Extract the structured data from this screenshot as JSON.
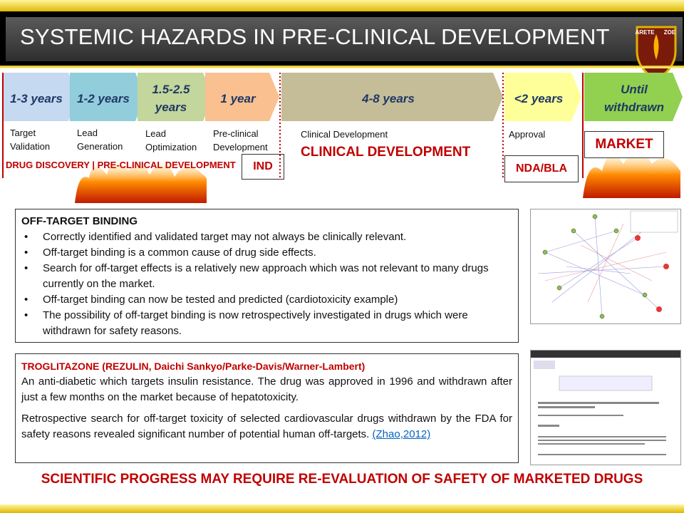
{
  "header": {
    "title": "SYSTEMIC HAZARDS IN PRE-CLINICAL DEVELOPMENT",
    "logo": [
      "ARETE",
      "ZOE"
    ]
  },
  "timeline": {
    "stages": [
      {
        "duration": "1-3 years",
        "label": "Target Validation"
      },
      {
        "duration": "1-2 years",
        "label": "Lead Generation"
      },
      {
        "duration": "1.5-2.5 years",
        "label": "Lead Optimization"
      },
      {
        "duration": "1 year",
        "label": "Pre-clinical Development"
      },
      {
        "duration": "4-8 years",
        "label": "Clinical Development"
      },
      {
        "duration": "<2 years",
        "label": "Approval"
      },
      {
        "duration": "Until withdrawn"
      }
    ],
    "phases": {
      "discovery": "DRUG DISCOVERY | PRE-CLINICAL DEVELOPMENT",
      "ind": "IND",
      "clinical": "CLINICAL DEVELOPMENT",
      "nda": "NDA/BLA",
      "market": "MARKET"
    }
  },
  "off_target": {
    "title": "OFF-TARGET BINDING",
    "bullets": [
      "Correctly identified and validated target may not always be clinically relevant.",
      "Off-target binding is a common cause of drug side effects.",
      "Search for off-target effects is a relatively new approach which was not relevant to many drugs currently on the market.",
      "Off-target binding can now be tested and predicted (cardiotoxicity example)",
      "The possibility of off-target binding is now retrospectively investigated in drugs which were withdrawn for safety reasons."
    ]
  },
  "troglitazone": {
    "title": "TROGLITAZONE (REZULIN, Daichi Sankyo/Parke-Davis/Warner-Lambert)",
    "paragraphs": [
      "An anti-diabetic which targets insulin resistance.  The drug was approved in 1996 and withdrawn after just a few months on the market because of hepatotoxicity.",
      "Retrospective search for off-target toxicity of selected cardiovascular drugs withdrawn by the FDA for safety reasons revealed significant number of potential human off-targets. "
    ],
    "link": "(Zhao,2012)"
  },
  "footer": "SCIENTIFIC PROGRESS MAY REQUIRE RE-EVALUATION OF SAFETY OF MARKETED DRUGS"
}
